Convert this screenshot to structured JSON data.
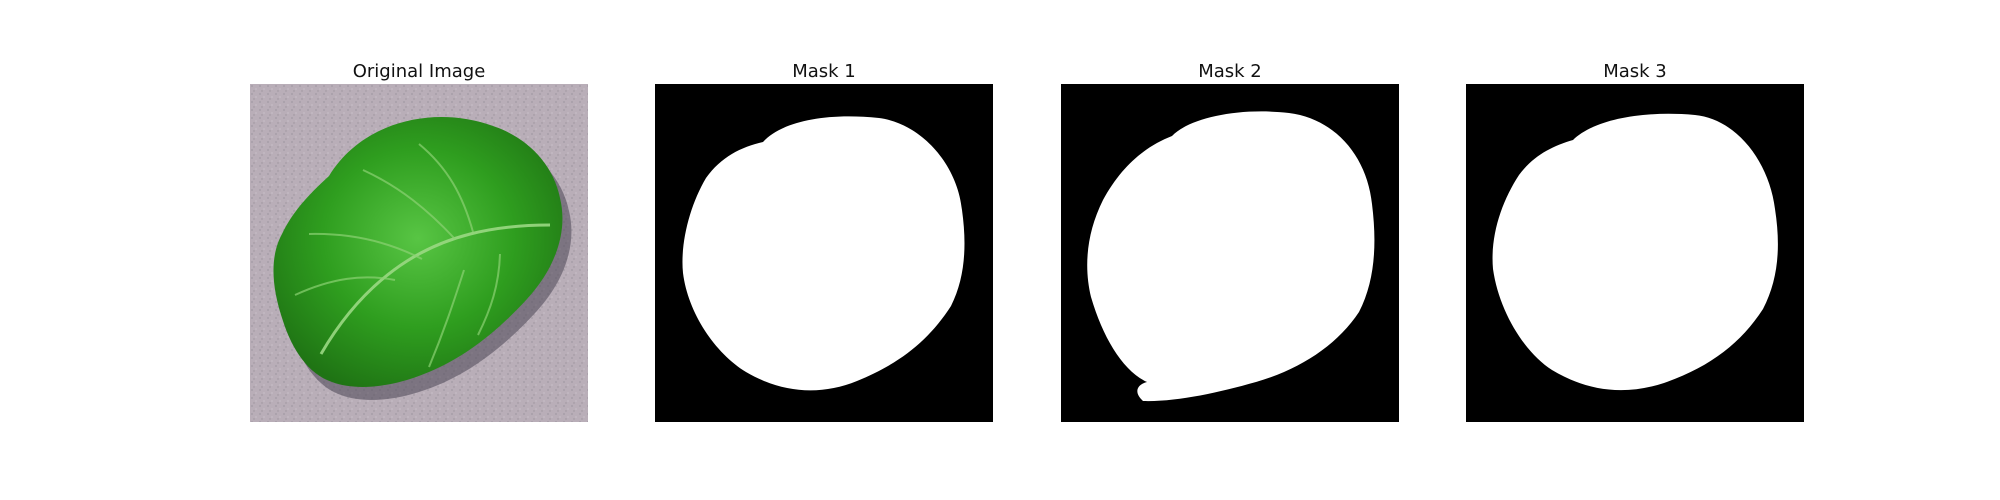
{
  "figure": {
    "panels": [
      {
        "title": "Original Image"
      },
      {
        "title": "Mask 1"
      },
      {
        "title": "Mask 2"
      },
      {
        "title": "Mask 3"
      }
    ]
  },
  "colors": {
    "background": "#ffffff",
    "mask_background": "#000000",
    "mask_foreground": "#ffffff",
    "leaf_green": "#2f9e1f",
    "surface_gray": "#b9aeb8"
  }
}
